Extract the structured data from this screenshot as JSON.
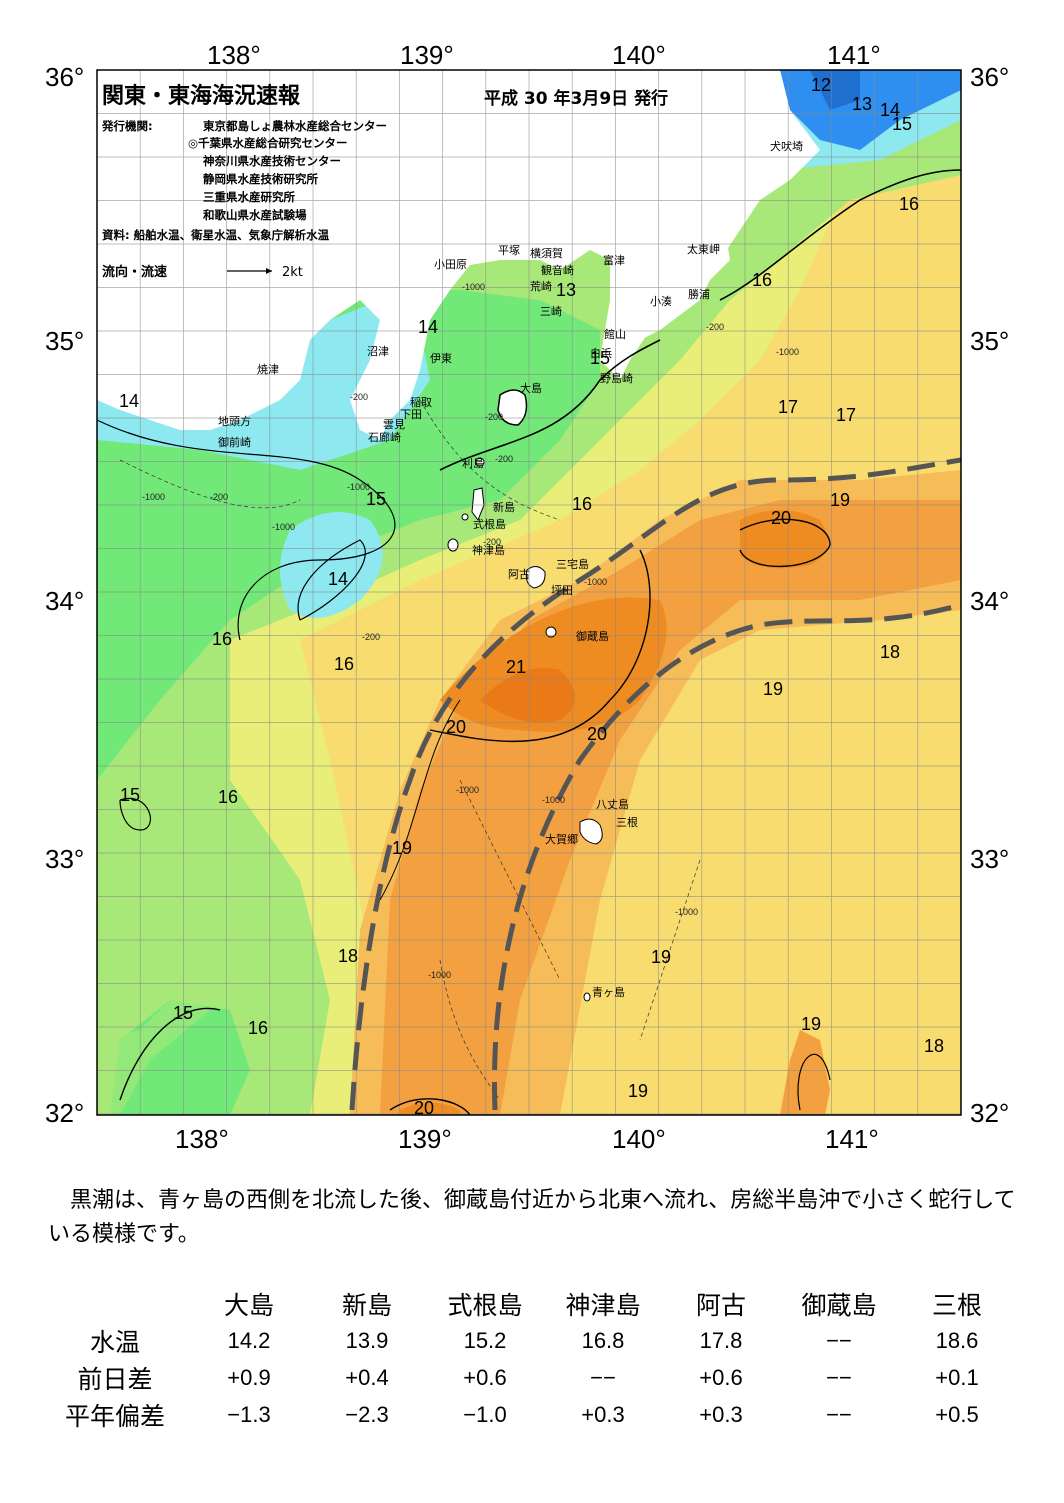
{
  "header": {
    "title": "関東・東海海況速報",
    "issue_date": "平成 30 年3月9日 発行",
    "issuer_label": "発行機関:",
    "issuers": [
      "東京都島しょ農林水産総合センター",
      "◎千葉県水産総合研究センター",
      "神奈川県水産技術センター",
      "静岡県水産技術研究所",
      "三重県水産研究所",
      "和歌山県水産試験場"
    ],
    "source": "資料: 船舶水温、衛星水温、気象庁解析水温",
    "flow_label": "流向・流速",
    "flow_scale": "2kt"
  },
  "axes": {
    "longitude_labels": [
      "138°",
      "139°",
      "140°",
      "141°"
    ],
    "latitude_labels": [
      "36°",
      "35°",
      "34°",
      "33°",
      "32°"
    ]
  },
  "place_names": [
    "犬吠埼",
    "太東岬",
    "勝浦",
    "小湊",
    "富津",
    "館山",
    "白浜",
    "野島崎",
    "平塚",
    "横須賀",
    "観音崎",
    "荒崎",
    "三崎",
    "小田原",
    "沼津",
    "伊東",
    "稲取",
    "下田",
    "雲見",
    "石廊崎",
    "焼津",
    "地頭方",
    "御前崎",
    "大島",
    "利島",
    "新島",
    "式根島",
    "神津島",
    "三宅島",
    "阿古",
    "坪田",
    "御蔵島",
    "八丈島",
    "三根",
    "大賀郷",
    "青ヶ島"
  ],
  "isotherm_labels": [
    "12",
    "13",
    "14",
    "15",
    "16",
    "16",
    "14",
    "13",
    "15",
    "14",
    "17",
    "17",
    "19",
    "20",
    "15",
    "16",
    "14",
    "16",
    "16",
    "21",
    "20",
    "20",
    "19",
    "18",
    "15",
    "16",
    "19",
    "18",
    "19",
    "19",
    "15",
    "16",
    "20",
    "19",
    "18"
  ],
  "depth_labels": [
    "-1000",
    "-200",
    "-200",
    "-1000",
    "-1000",
    "-200",
    "-1000",
    "-200",
    "-200",
    "-1000",
    "-200",
    "-200",
    "-1000",
    "-1000",
    "-1000",
    "-1000",
    "-1000"
  ],
  "legend_colors": {
    "t12": "#2f8ff0",
    "t14": "#8ee8f0",
    "t15": "#72e878",
    "t16": "#a8e878",
    "t17": "#e8ee78",
    "t18": "#f8dc70",
    "t19": "#f6bc58",
    "t20": "#f3a040",
    "t21": "#ee8c22",
    "land": "#ffffff",
    "kuroshio": "#555555"
  },
  "summary": "黒潮は、青ヶ島の西側を北流した後、御蔵島付近から北東へ流れ、房総半島沖で小さく蛇行している模様です。",
  "table": {
    "columns": [
      "大島",
      "新島",
      "式根島",
      "神津島",
      "阿古",
      "御蔵島",
      "三根"
    ],
    "rows": [
      {
        "label": "水温",
        "values": [
          "14.2",
          "13.9",
          "15.2",
          "16.8",
          "17.8",
          "−−",
          "18.6"
        ]
      },
      {
        "label": "前日差",
        "values": [
          "+0.9",
          "+0.4",
          "+0.6",
          "−−",
          "+0.6",
          "−−",
          "+0.1"
        ]
      },
      {
        "label": "平年偏差",
        "values": [
          "−1.3",
          "−2.3",
          "−1.0",
          "+0.3",
          "+0.3",
          "−−",
          "+0.5"
        ]
      }
    ]
  }
}
